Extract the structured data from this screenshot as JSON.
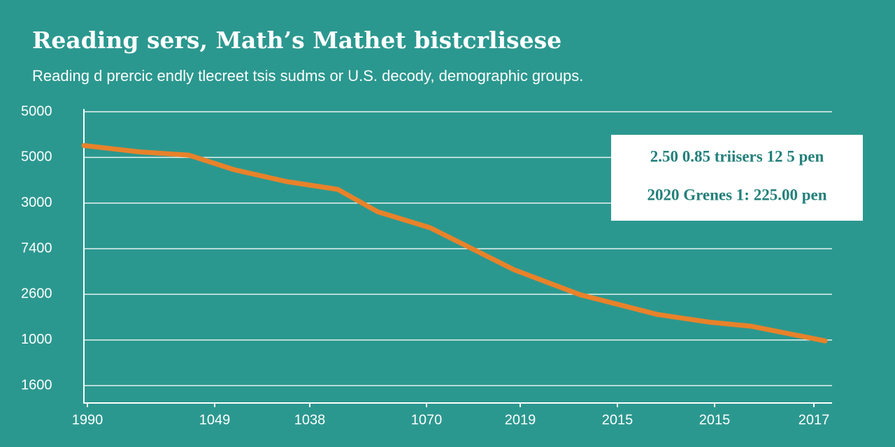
{
  "chart_data": {
    "type": "line",
    "title": "Reading sers, Math’s Mathet bistcrlisese",
    "subtitle": "Reading d prercic endly tlecreet tsis sudms or U.S. decody, demographic groups.",
    "annotations": [
      "2.50 0.85 triisers 12 5 pen",
      "2020 Grenes 1: 225.00 pen"
    ],
    "x": [
      0,
      0.4,
      0.8,
      1.5,
      2.15,
      2.9,
      3.63,
      4.2,
      4.95,
      5.5,
      6.15,
      7.1,
      8.2,
      8.95,
      9.55,
      10.6
    ],
    "series": [
      {
        "color": "#e8822a",
        "values": [
          5.26,
          5.19,
          5.12,
          5.05,
          4.73,
          4.47,
          4.3,
          3.81,
          3.46,
          3.04,
          2.54,
          1.99,
          1.56,
          1.39,
          1.3,
          0.98
        ]
      }
    ],
    "xlim": [
      0,
      10.7
    ],
    "xticks": [
      {
        "value": 0.05,
        "label": "1990"
      },
      {
        "value": 1.87,
        "label": "1049"
      },
      {
        "value": 3.23,
        "label": "1038"
      },
      {
        "value": 4.9,
        "label": "1070"
      },
      {
        "value": 6.24,
        "label": "2019"
      },
      {
        "value": 7.63,
        "label": "2015"
      },
      {
        "value": 9.02,
        "label": "2015"
      },
      {
        "value": 10.44,
        "label": "2017"
      }
    ],
    "ylim": [
      -0.35,
      6
    ],
    "yticks": [
      {
        "value": 6,
        "label": "5000"
      },
      {
        "value": 5,
        "label": "5000"
      },
      {
        "value": 4,
        "label": "3000"
      },
      {
        "value": 3,
        "label": "7400"
      },
      {
        "value": 2,
        "label": "2600"
      },
      {
        "value": 1,
        "label": "1000"
      },
      {
        "value": 0,
        "label": "1600"
      }
    ],
    "grid": true
  }
}
